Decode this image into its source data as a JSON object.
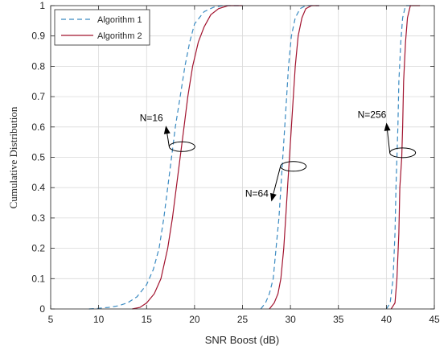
{
  "chart_data": {
    "type": "line",
    "title": "",
    "xlabel": "SNR Boost (dB)",
    "ylabel": "Cumulative Distribution",
    "xlim": [
      5,
      45
    ],
    "ylim": [
      0,
      1
    ],
    "x_ticks": [
      5,
      10,
      15,
      20,
      25,
      30,
      35,
      40,
      45
    ],
    "y_ticks": [
      0,
      0.1,
      0.2,
      0.3,
      0.4,
      0.5,
      0.6,
      0.7,
      0.8,
      0.9,
      1
    ],
    "grid": true,
    "legend_position": "top-left",
    "series": [
      {
        "name": "Algorithm 1",
        "color": "#3b8bc2",
        "style": "dashed",
        "segments": [
          [
            [
              9,
              0
            ],
            [
              10,
              0.002
            ],
            [
              11,
              0.005
            ],
            [
              12,
              0.01
            ],
            [
              13,
              0.02
            ],
            [
              14,
              0.04
            ],
            [
              15,
              0.08
            ],
            [
              15.7,
              0.13
            ],
            [
              16.3,
              0.2
            ],
            [
              16.8,
              0.3
            ],
            [
              17.2,
              0.4
            ],
            [
              17.6,
              0.5
            ],
            [
              18,
              0.6
            ],
            [
              18.5,
              0.7
            ],
            [
              19,
              0.8
            ],
            [
              19.5,
              0.88
            ],
            [
              20,
              0.94
            ],
            [
              21,
              0.98
            ],
            [
              22,
              0.995
            ],
            [
              23,
              1
            ],
            [
              25,
              1
            ]
          ],
          [
            [
              26.9,
              0
            ],
            [
              27.4,
              0.02
            ],
            [
              27.8,
              0.05
            ],
            [
              28.2,
              0.1
            ],
            [
              28.5,
              0.2
            ],
            [
              28.8,
              0.3
            ],
            [
              29,
              0.4
            ],
            [
              29.2,
              0.5
            ],
            [
              29.4,
              0.6
            ],
            [
              29.6,
              0.7
            ],
            [
              29.8,
              0.8
            ],
            [
              30.1,
              0.9
            ],
            [
              30.5,
              0.96
            ],
            [
              31,
              0.99
            ],
            [
              31.6,
              1
            ],
            [
              33,
              1
            ]
          ],
          [
            [
              40,
              0
            ],
            [
              40.4,
              0.02
            ],
            [
              40.7,
              0.1
            ],
            [
              40.9,
              0.25
            ],
            [
              41,
              0.4
            ],
            [
              41.1,
              0.5
            ],
            [
              41.2,
              0.6
            ],
            [
              41.3,
              0.75
            ],
            [
              41.5,
              0.88
            ],
            [
              41.7,
              0.96
            ],
            [
              42,
              1
            ],
            [
              42.8,
              1
            ]
          ]
        ]
      },
      {
        "name": "Algorithm 2",
        "color": "#a2142f",
        "style": "solid",
        "segments": [
          [
            [
              13.5,
              0
            ],
            [
              14.3,
              0.005
            ],
            [
              15,
              0.02
            ],
            [
              15.8,
              0.05
            ],
            [
              16.5,
              0.1
            ],
            [
              17.2,
              0.2
            ],
            [
              17.7,
              0.3
            ],
            [
              18.1,
              0.4
            ],
            [
              18.5,
              0.5
            ],
            [
              18.9,
              0.6
            ],
            [
              19.3,
              0.7
            ],
            [
              19.8,
              0.8
            ],
            [
              20.4,
              0.88
            ],
            [
              21,
              0.93
            ],
            [
              21.7,
              0.97
            ],
            [
              22.5,
              0.99
            ],
            [
              23.5,
              1
            ],
            [
              25,
              1
            ]
          ],
          [
            [
              27.8,
              0
            ],
            [
              28.3,
              0.02
            ],
            [
              28.7,
              0.05
            ],
            [
              29,
              0.1
            ],
            [
              29.3,
              0.2
            ],
            [
              29.5,
              0.3
            ],
            [
              29.7,
              0.4
            ],
            [
              29.9,
              0.5
            ],
            [
              30.1,
              0.6
            ],
            [
              30.3,
              0.7
            ],
            [
              30.5,
              0.8
            ],
            [
              30.8,
              0.9
            ],
            [
              31.2,
              0.96
            ],
            [
              31.6,
              0.99
            ],
            [
              32.2,
              1
            ],
            [
              33,
              1
            ]
          ],
          [
            [
              40.5,
              0
            ],
            [
              40.9,
              0.02
            ],
            [
              41.1,
              0.1
            ],
            [
              41.3,
              0.25
            ],
            [
              41.4,
              0.4
            ],
            [
              41.6,
              0.5
            ],
            [
              41.7,
              0.6
            ],
            [
              41.8,
              0.75
            ],
            [
              42,
              0.88
            ],
            [
              42.2,
              0.96
            ],
            [
              42.5,
              1
            ],
            [
              43.5,
              1
            ]
          ]
        ]
      }
    ],
    "annotations": [
      {
        "text": "N=16",
        "ellipse_center": [
          18.7,
          0.535
        ],
        "text_anchor": [
          15.5,
          0.62
        ]
      },
      {
        "text": "N=64",
        "ellipse_center": [
          30.3,
          0.47
        ],
        "text_anchor": [
          26.5,
          0.37
        ]
      },
      {
        "text": "N=256",
        "ellipse_center": [
          41.7,
          0.515
        ],
        "text_anchor": [
          38.5,
          0.63
        ]
      }
    ]
  }
}
